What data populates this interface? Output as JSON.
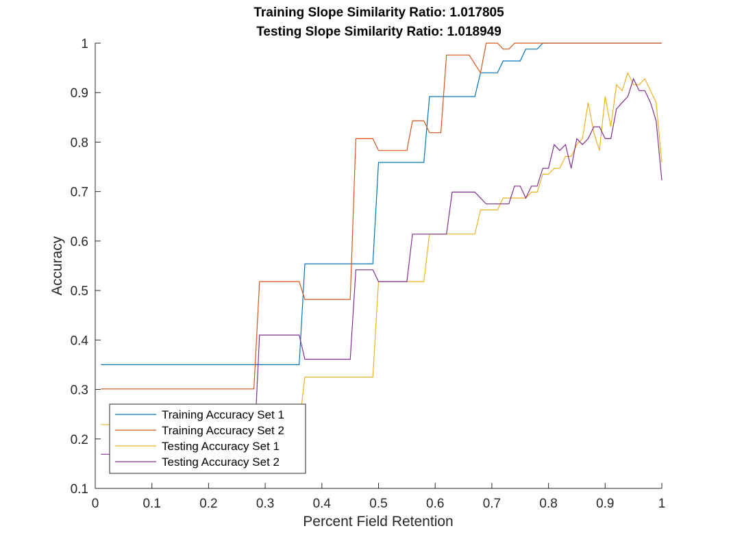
{
  "chart_data": {
    "type": "line",
    "title": [
      "Training Slope Similarity Ratio: 1.017805",
      "Testing Slope Similarity Ratio: 1.018949"
    ],
    "xlabel": "Percent Field Retention",
    "ylabel": "Accuracy",
    "xlim": [
      0,
      1
    ],
    "ylim": [
      0.1,
      1
    ],
    "xticks": [
      "0",
      "0.1",
      "0.2",
      "0.3",
      "0.4",
      "0.5",
      "0.6",
      "0.7",
      "0.8",
      "0.9",
      "1"
    ],
    "yticks": [
      "0.1",
      "0.2",
      "0.3",
      "0.4",
      "0.5",
      "0.6",
      "0.7",
      "0.8",
      "0.9",
      "1"
    ],
    "grid": false,
    "legend_position": "bottom-left",
    "series": [
      {
        "name": "Training Accuracy Set 1",
        "color": "#0072BD",
        "points": [
          [
            0.01,
            0.35
          ],
          [
            0.36,
            0.35
          ],
          [
            0.37,
            0.554
          ],
          [
            0.49,
            0.554
          ],
          [
            0.5,
            0.759
          ],
          [
            0.58,
            0.759
          ],
          [
            0.59,
            0.892
          ],
          [
            0.67,
            0.892
          ],
          [
            0.68,
            0.94
          ],
          [
            0.71,
            0.94
          ],
          [
            0.72,
            0.964
          ],
          [
            0.75,
            0.964
          ],
          [
            0.76,
            0.988
          ],
          [
            0.78,
            0.988
          ],
          [
            0.79,
            1.0
          ],
          [
            1.0,
            1.0
          ]
        ]
      },
      {
        "name": "Training Accuracy Set 2",
        "color": "#D95319",
        "points": [
          [
            0.01,
            0.301
          ],
          [
            0.28,
            0.301
          ],
          [
            0.29,
            0.518
          ],
          [
            0.36,
            0.518
          ],
          [
            0.37,
            0.482
          ],
          [
            0.45,
            0.482
          ],
          [
            0.46,
            0.807
          ],
          [
            0.49,
            0.807
          ],
          [
            0.5,
            0.783
          ],
          [
            0.55,
            0.783
          ],
          [
            0.56,
            0.843
          ],
          [
            0.58,
            0.843
          ],
          [
            0.59,
            0.819
          ],
          [
            0.61,
            0.819
          ],
          [
            0.62,
            0.976
          ],
          [
            0.66,
            0.976
          ],
          [
            0.68,
            0.94
          ],
          [
            0.69,
            1.0
          ],
          [
            0.71,
            1.0
          ],
          [
            0.72,
            0.988
          ],
          [
            0.73,
            0.988
          ],
          [
            0.74,
            1.0
          ],
          [
            1.0,
            1.0
          ]
        ]
      },
      {
        "name": "Testing Accuracy Set 1",
        "color": "#EDB120",
        "points": [
          [
            0.01,
            0.229
          ],
          [
            0.28,
            0.229
          ],
          [
            0.29,
            0.229
          ],
          [
            0.36,
            0.229
          ],
          [
            0.37,
            0.325
          ],
          [
            0.49,
            0.325
          ],
          [
            0.5,
            0.518
          ],
          [
            0.58,
            0.518
          ],
          [
            0.59,
            0.614
          ],
          [
            0.67,
            0.614
          ],
          [
            0.68,
            0.663
          ],
          [
            0.71,
            0.663
          ],
          [
            0.72,
            0.687
          ],
          [
            0.76,
            0.687
          ],
          [
            0.77,
            0.699
          ],
          [
            0.78,
            0.699
          ],
          [
            0.79,
            0.735
          ],
          [
            0.8,
            0.735
          ],
          [
            0.81,
            0.747
          ],
          [
            0.82,
            0.747
          ],
          [
            0.83,
            0.771
          ],
          [
            0.84,
            0.771
          ],
          [
            0.85,
            0.795
          ],
          [
            0.86,
            0.807
          ],
          [
            0.87,
            0.88
          ],
          [
            0.88,
            0.819
          ],
          [
            0.89,
            0.783
          ],
          [
            0.9,
            0.892
          ],
          [
            0.91,
            0.831
          ],
          [
            0.92,
            0.916
          ],
          [
            0.93,
            0.904
          ],
          [
            0.94,
            0.94
          ],
          [
            0.95,
            0.916
          ],
          [
            0.96,
            0.916
          ],
          [
            0.97,
            0.928
          ],
          [
            0.98,
            0.904
          ],
          [
            0.99,
            0.88
          ],
          [
            1.0,
            0.759
          ]
        ]
      },
      {
        "name": "Testing Accuracy Set 2",
        "color": "#7E2F8E",
        "points": [
          [
            0.01,
            0.169
          ],
          [
            0.28,
            0.169
          ],
          [
            0.29,
            0.41
          ],
          [
            0.36,
            0.41
          ],
          [
            0.37,
            0.361
          ],
          [
            0.45,
            0.361
          ],
          [
            0.46,
            0.542
          ],
          [
            0.49,
            0.542
          ],
          [
            0.5,
            0.518
          ],
          [
            0.55,
            0.518
          ],
          [
            0.56,
            0.614
          ],
          [
            0.61,
            0.614
          ],
          [
            0.62,
            0.614
          ],
          [
            0.63,
            0.699
          ],
          [
            0.67,
            0.699
          ],
          [
            0.69,
            0.675
          ],
          [
            0.73,
            0.675
          ],
          [
            0.74,
            0.711
          ],
          [
            0.75,
            0.711
          ],
          [
            0.76,
            0.687
          ],
          [
            0.77,
            0.711
          ],
          [
            0.78,
            0.711
          ],
          [
            0.79,
            0.747
          ],
          [
            0.8,
            0.747
          ],
          [
            0.81,
            0.795
          ],
          [
            0.82,
            0.783
          ],
          [
            0.83,
            0.795
          ],
          [
            0.84,
            0.747
          ],
          [
            0.85,
            0.807
          ],
          [
            0.86,
            0.795
          ],
          [
            0.87,
            0.807
          ],
          [
            0.88,
            0.831
          ],
          [
            0.89,
            0.831
          ],
          [
            0.9,
            0.807
          ],
          [
            0.91,
            0.807
          ],
          [
            0.92,
            0.867
          ],
          [
            0.93,
            0.88
          ],
          [
            0.94,
            0.892
          ],
          [
            0.95,
            0.928
          ],
          [
            0.96,
            0.904
          ],
          [
            0.97,
            0.904
          ],
          [
            0.98,
            0.88
          ],
          [
            0.99,
            0.843
          ],
          [
            1.0,
            0.723
          ]
        ]
      }
    ]
  }
}
